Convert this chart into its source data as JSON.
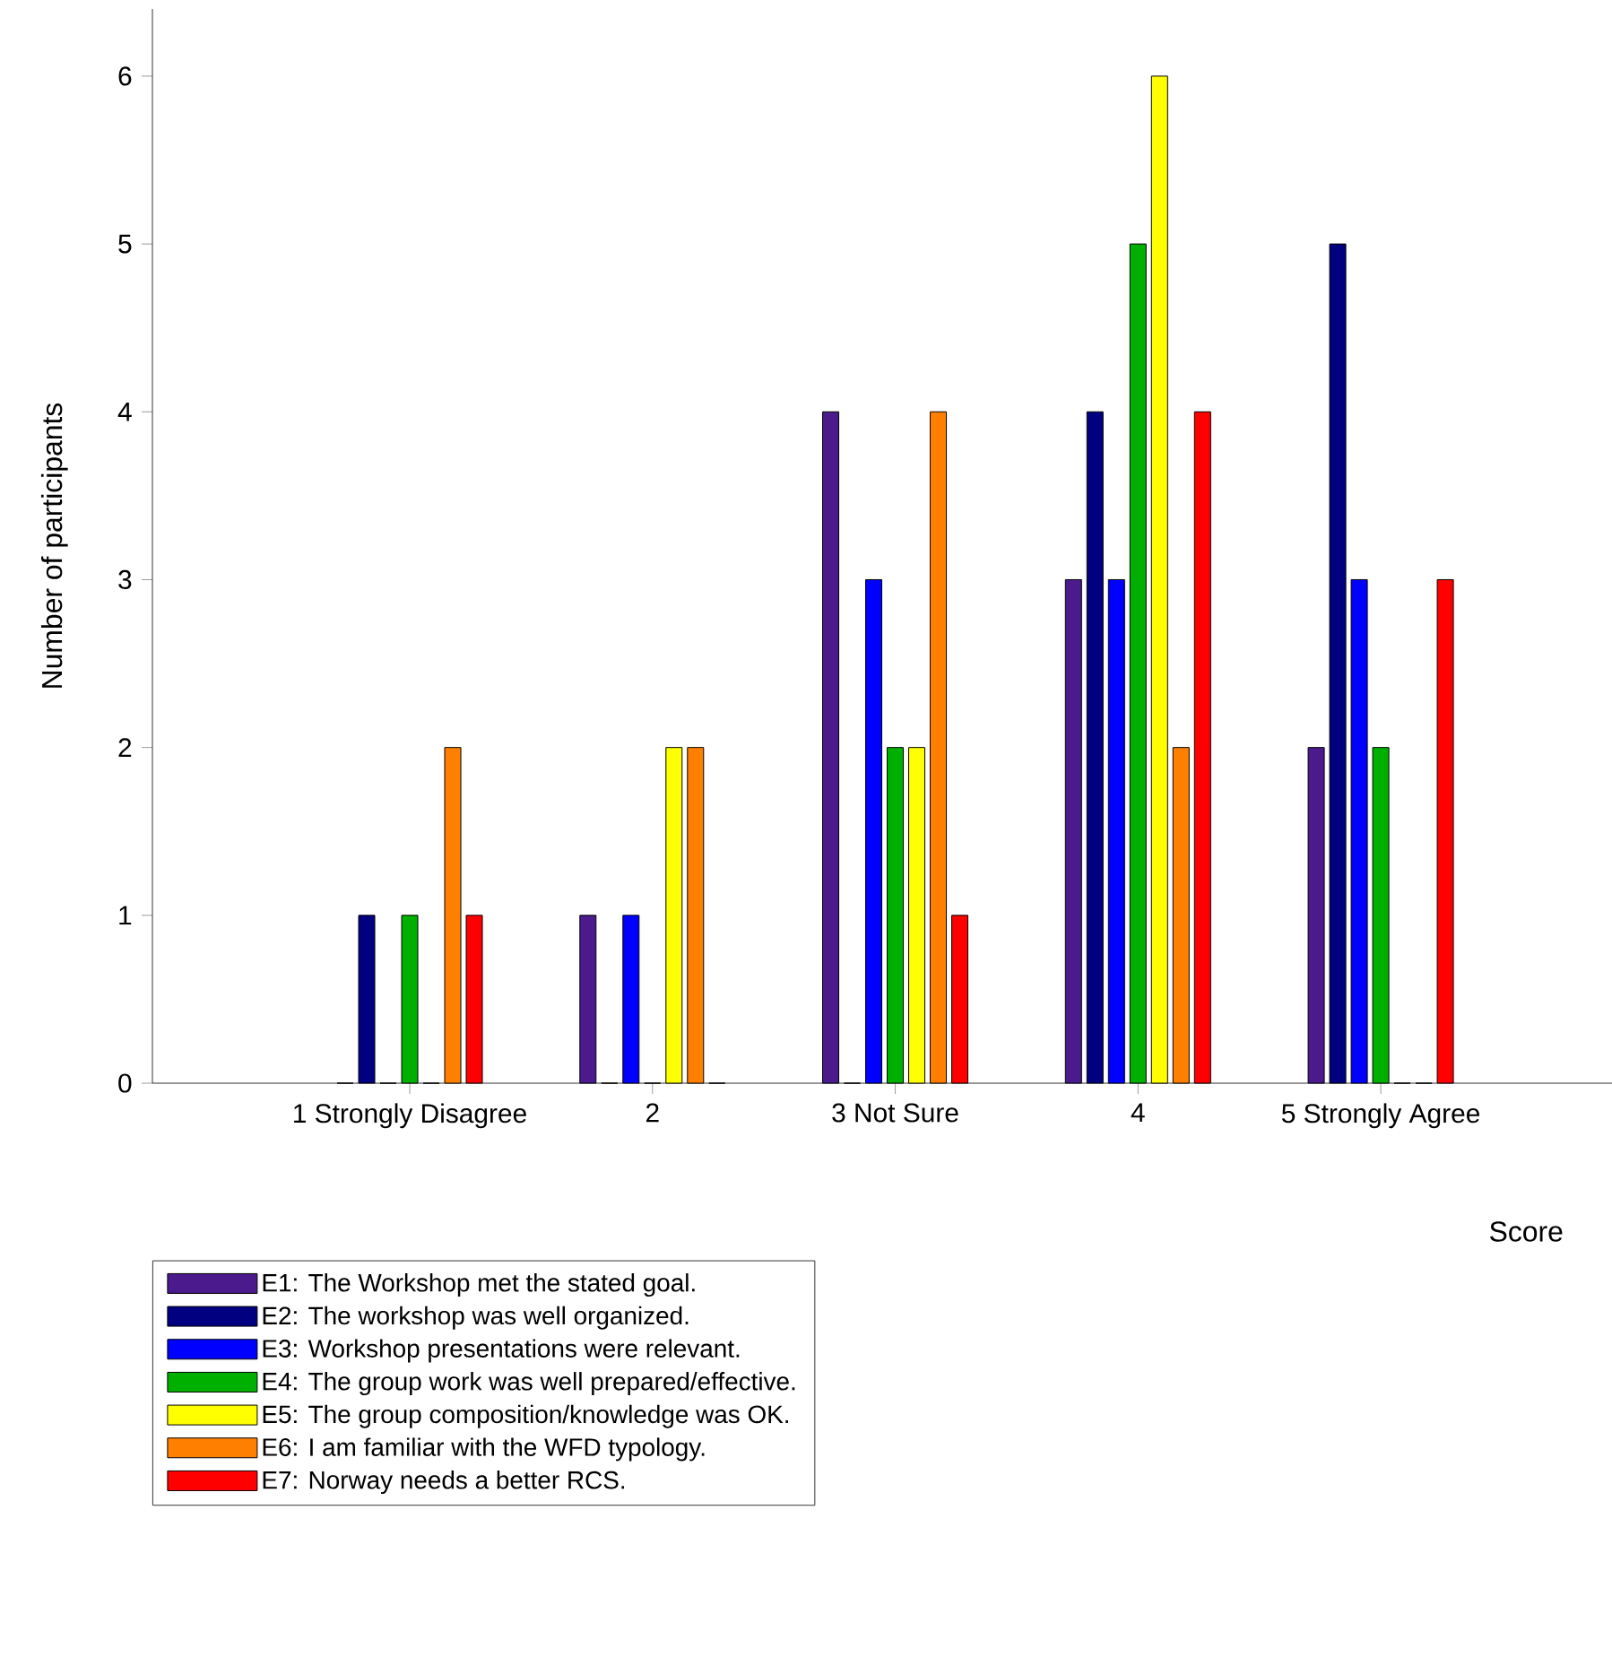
{
  "chart_data": {
    "type": "bar",
    "xlabel": "Score",
    "ylabel": "Number of participants",
    "categories": [
      "1 Strongly Disagree",
      "2",
      "3 Not Sure",
      "4",
      "5 Strongly Agree"
    ],
    "series": [
      {
        "name": "E1: The Workshop met the stated goal.",
        "color": "#4b1a8c",
        "values": [
          0,
          1,
          4,
          3,
          2
        ]
      },
      {
        "name": "E2: The workshop was well organized.",
        "color": "#000080",
        "values": [
          1,
          0,
          0,
          4,
          5
        ]
      },
      {
        "name": "E3: Workshop presentations were relevant.",
        "color": "#0000ff",
        "values": [
          0,
          1,
          3,
          3,
          3
        ]
      },
      {
        "name": "E4: The group work was well prepared/effective.",
        "color": "#00b000",
        "values": [
          1,
          0,
          2,
          5,
          2
        ]
      },
      {
        "name": "E5: The group composition/knowledge was OK.",
        "color": "#ffff00",
        "values": [
          0,
          2,
          2,
          6,
          0
        ]
      },
      {
        "name": "E6: I am familiar with the WFD typology.",
        "color": "#ff8000",
        "values": [
          2,
          2,
          4,
          2,
          0
        ]
      },
      {
        "name": "E7: Norway needs a better RCS.",
        "color": "#ff0000",
        "values": [
          1,
          0,
          1,
          4,
          3
        ]
      }
    ],
    "ylim": [
      0,
      6.4
    ],
    "yticks": [
      0,
      1,
      2,
      3,
      4,
      5,
      6
    ],
    "grid": false,
    "legend": "bottom"
  }
}
